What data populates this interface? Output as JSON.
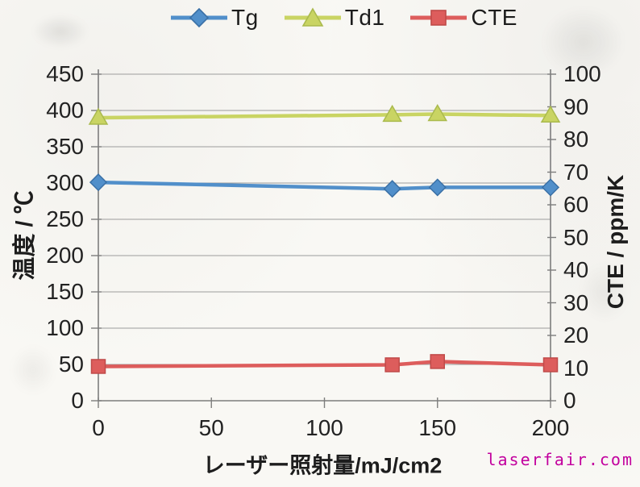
{
  "watermark": {
    "text": "laserfair.com",
    "color": "#c2009e"
  },
  "chart_data": {
    "type": "line",
    "title": "",
    "x": [
      0,
      130,
      150,
      200
    ],
    "xlim": [
      0,
      200
    ],
    "x_ticks": [
      0,
      50,
      100,
      150,
      200
    ],
    "xlabel": "レーザー照射量/mJ/cm2",
    "y_left": {
      "label": "温度 / ℃",
      "lim": [
        0,
        450
      ],
      "ticks": [
        0,
        50,
        100,
        150,
        200,
        250,
        300,
        350,
        400,
        450
      ]
    },
    "y_right": {
      "label": "CTE / ppm/K",
      "lim": [
        0,
        100
      ],
      "ticks": [
        0,
        10,
        20,
        30,
        40,
        50,
        60,
        70,
        80,
        90,
        100
      ]
    },
    "grid": "horizontal-only",
    "legend_position": "top-center",
    "series": [
      {
        "name": "Tg",
        "axis": "left",
        "marker": "diamond",
        "color": "#518fca",
        "edge_color": "#3a70a6",
        "values": [
          301,
          292,
          294,
          294
        ]
      },
      {
        "name": "Td1",
        "axis": "left",
        "marker": "triangle",
        "color": "#c9d463",
        "edge_color": "#aaba4d",
        "values": [
          390,
          394,
          395,
          393
        ]
      },
      {
        "name": "CTE",
        "axis": "right",
        "marker": "square",
        "color": "#dd5d5c",
        "edge_color": "#c04a49",
        "values": [
          10.5,
          11,
          12,
          11
        ]
      }
    ]
  }
}
